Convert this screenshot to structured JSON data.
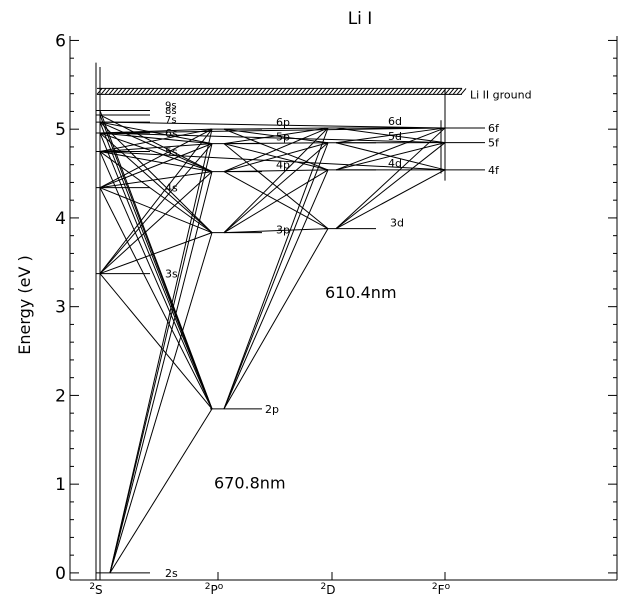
{
  "title": "Li I",
  "y_axis": {
    "label": "Energy (eV )",
    "ticks": [
      "0",
      "1",
      "2",
      "3",
      "4",
      "5",
      "6"
    ],
    "range": [
      -0.08,
      6.05
    ]
  },
  "columns": [
    {
      "key": "S",
      "sup": "2",
      "base": "S",
      "post": ""
    },
    {
      "key": "P",
      "sup": "2",
      "base": "P",
      "post": "o"
    },
    {
      "key": "D",
      "sup": "2",
      "base": "D",
      "post": ""
    },
    {
      "key": "F",
      "sup": "2",
      "base": "F",
      "post": "o"
    }
  ],
  "ionization": {
    "label": "Li II ground",
    "energy": 5.392
  },
  "levels": [
    {
      "name": "2s",
      "column": "S",
      "energy": 0.0
    },
    {
      "name": "3s",
      "column": "S",
      "energy": 3.373
    },
    {
      "name": "4s",
      "column": "S",
      "energy": 4.341
    },
    {
      "name": "5s",
      "column": "S",
      "energy": 4.748
    },
    {
      "name": "6s",
      "column": "S",
      "energy": 4.957
    },
    {
      "name": "7s",
      "column": "S",
      "energy": 5.08
    },
    {
      "name": "8s",
      "column": "S",
      "energy": 5.16
    },
    {
      "name": "9s",
      "column": "S",
      "energy": 5.21
    },
    {
      "name": "2p",
      "column": "P",
      "energy": 1.848
    },
    {
      "name": "3p",
      "column": "P",
      "energy": 3.834
    },
    {
      "name": "4p",
      "column": "P",
      "energy": 4.522
    },
    {
      "name": "5p",
      "column": "P",
      "energy": 4.837
    },
    {
      "name": "6p",
      "column": "P",
      "energy": 5.0
    },
    {
      "name": "3d",
      "column": "D",
      "energy": 3.879
    },
    {
      "name": "4d",
      "column": "D",
      "energy": 4.541
    },
    {
      "name": "5d",
      "column": "D",
      "energy": 4.847
    },
    {
      "name": "6d",
      "column": "D",
      "energy": 5.013
    },
    {
      "name": "4f",
      "column": "F",
      "energy": 4.542
    },
    {
      "name": "5f",
      "column": "F",
      "energy": 4.848
    },
    {
      "name": "6f",
      "column": "F",
      "energy": 5.014
    }
  ],
  "transitions": [
    [
      "2s",
      "2p"
    ],
    [
      "2s",
      "3p"
    ],
    [
      "2s",
      "4p"
    ],
    [
      "2s",
      "5p"
    ],
    [
      "2s",
      "6p"
    ],
    [
      "3s",
      "2p"
    ],
    [
      "3s",
      "3p"
    ],
    [
      "3s",
      "4p"
    ],
    [
      "3s",
      "5p"
    ],
    [
      "3s",
      "6p"
    ],
    [
      "4s",
      "2p"
    ],
    [
      "4s",
      "3p"
    ],
    [
      "4s",
      "4p"
    ],
    [
      "4s",
      "5p"
    ],
    [
      "4s",
      "6p"
    ],
    [
      "5s",
      "2p"
    ],
    [
      "5s",
      "3p"
    ],
    [
      "5s",
      "4p"
    ],
    [
      "5s",
      "5p"
    ],
    [
      "5s",
      "6p"
    ],
    [
      "6s",
      "2p"
    ],
    [
      "6s",
      "3p"
    ],
    [
      "6s",
      "4p"
    ],
    [
      "6s",
      "5p"
    ],
    [
      "6s",
      "6p"
    ],
    [
      "7s",
      "2p"
    ],
    [
      "7s",
      "3p"
    ],
    [
      "7s",
      "4p"
    ],
    [
      "7s",
      "5p"
    ],
    [
      "8s",
      "2p"
    ],
    [
      "8s",
      "4p"
    ],
    [
      "9s",
      "2p"
    ],
    [
      "2p",
      "3d"
    ],
    [
      "2p",
      "4d"
    ],
    [
      "2p",
      "5d"
    ],
    [
      "2p",
      "6d"
    ],
    [
      "3p",
      "3d"
    ],
    [
      "3p",
      "4d"
    ],
    [
      "3p",
      "5d"
    ],
    [
      "3p",
      "6d"
    ],
    [
      "4p",
      "3d"
    ],
    [
      "4p",
      "4d"
    ],
    [
      "4p",
      "5d"
    ],
    [
      "4p",
      "6d"
    ],
    [
      "5p",
      "3d"
    ],
    [
      "5p",
      "4d"
    ],
    [
      "5p",
      "5d"
    ],
    [
      "5p",
      "6d"
    ],
    [
      "6p",
      "4d"
    ],
    [
      "6p",
      "5d"
    ],
    [
      "6p",
      "6d"
    ],
    [
      "3d",
      "4f"
    ],
    [
      "3d",
      "5f"
    ],
    [
      "3d",
      "6f"
    ],
    [
      "4d",
      "4f"
    ],
    [
      "4d",
      "5f"
    ],
    [
      "4d",
      "6f"
    ],
    [
      "5d",
      "4f"
    ],
    [
      "5d",
      "5f"
    ],
    [
      "5d",
      "6f"
    ],
    [
      "6d",
      "5f"
    ],
    [
      "6d",
      "6f"
    ],
    [
      "6s",
      "6f"
    ],
    [
      "7s",
      "6f"
    ],
    [
      "6s",
      "5f"
    ],
    [
      "5s",
      "4f"
    ]
  ],
  "wavelength_labels": [
    {
      "text": "670.8nm",
      "energy": 0.95,
      "column": "P"
    },
    {
      "text": "610.4nm",
      "energy": 3.1,
      "column": "D"
    }
  ]
}
